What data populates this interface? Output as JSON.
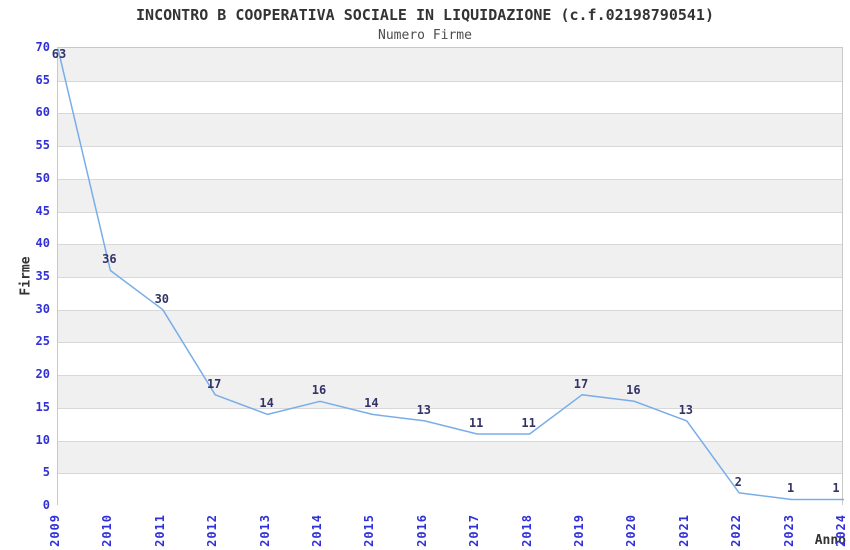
{
  "chart_data": {
    "type": "line",
    "title": "INCONTRO B COOPERATIVA SOCIALE IN LIQUIDAZIONE (c.f.02198790541)",
    "subtitle": "Numero Firme",
    "xlabel": "Anno",
    "ylabel": "Firme",
    "x": [
      "2009",
      "2010",
      "2011",
      "2012",
      "2013",
      "2014",
      "2015",
      "2016",
      "2017",
      "2018",
      "2019",
      "2020",
      "2021",
      "2022",
      "2023",
      "2024"
    ],
    "series": [
      {
        "name": "Numero Firme",
        "values": [
          63,
          36,
          30,
          17,
          14,
          16,
          14,
          13,
          11,
          11,
          17,
          16,
          13,
          2,
          1,
          1
        ]
      }
    ],
    "ylim": [
      0,
      70
    ],
    "ytick_step": 5,
    "grid": true,
    "legend": "none",
    "band_fill": "alternating horizontal 5-unit bands",
    "colors": {
      "line": "#79ade8",
      "tick_label": "#3030d6",
      "data_label": "#333366",
      "band_gray": "#f0f0f0",
      "gridline": "#d8d8d8",
      "plot_border": "#c9c9c9",
      "title": "#333333",
      "subtitle": "#4d4d4d"
    }
  }
}
